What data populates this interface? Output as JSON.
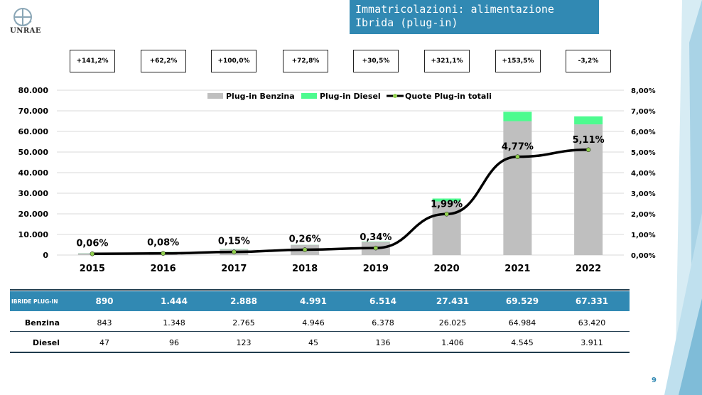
{
  "header": {
    "title": "Immatricolazioni: alimentazione Ibrida (plug-in)",
    "logo_text": "UNRAE"
  },
  "growth_rates": [
    "+141,2%",
    "+62,2%",
    "+100,0%",
    "+72,8%",
    "+30,5%",
    "+321,1%",
    "+153,5%",
    "-3,2%"
  ],
  "chart_data": {
    "type": "bar",
    "categories": [
      "2015",
      "2016",
      "2017",
      "2018",
      "2019",
      "2020",
      "2021",
      "2022"
    ],
    "series": [
      {
        "name": "Plug-in Benzina",
        "kind": "stacked-bar",
        "values": [
          843,
          1348,
          2765,
          4946,
          6378,
          26025,
          64984,
          63420
        ],
        "color": "#bfbfbf"
      },
      {
        "name": "Plug-in Diesel",
        "kind": "stacked-bar",
        "values": [
          47,
          96,
          123,
          45,
          136,
          1406,
          4545,
          3911
        ],
        "color": "#4dfb8f"
      },
      {
        "name": "Quote Plug-in totali",
        "kind": "line",
        "axis": "right",
        "values": [
          0.06,
          0.08,
          0.15,
          0.26,
          0.34,
          1.99,
          4.77,
          5.11
        ],
        "color": "#000000"
      }
    ],
    "line_labels": [
      "0,06%",
      "0,08%",
      "0,15%",
      "0,26%",
      "0,34%",
      "1,99%",
      "4,77%",
      "5,11%"
    ],
    "y_left_ticks": [
      "0",
      "10.000",
      "20.000",
      "30.000",
      "40.000",
      "50.000",
      "60.000",
      "70.000",
      "80.000"
    ],
    "y_right_ticks": [
      "0,00%",
      "1,00%",
      "2,00%",
      "3,00%",
      "4,00%",
      "5,00%",
      "6,00%",
      "7,00%",
      "8,00%"
    ],
    "ylim_left": [
      0,
      80000
    ],
    "ylim_right": [
      0,
      8
    ],
    "legend_position": "top",
    "grid": true
  },
  "table": {
    "header_label": "IBRIDE PLUG-IN",
    "totals": [
      "890",
      "1.444",
      "2.888",
      "4.991",
      "6.514",
      "27.431",
      "69.529",
      "67.331"
    ],
    "rows": [
      {
        "label": "Benzina",
        "values": [
          "843",
          "1.348",
          "2.765",
          "4.946",
          "6.378",
          "26.025",
          "64.984",
          "63.420"
        ]
      },
      {
        "label": "Diesel",
        "values": [
          "47",
          "96",
          "123",
          "45",
          "136",
          "1.406",
          "4.545",
          "3.911"
        ]
      }
    ]
  },
  "page_number": "9",
  "colors": {
    "accent": "#3189b3",
    "benzina": "#bfbfbf",
    "diesel": "#4dfb8f",
    "line": "#000000",
    "marker": "#92d050"
  }
}
